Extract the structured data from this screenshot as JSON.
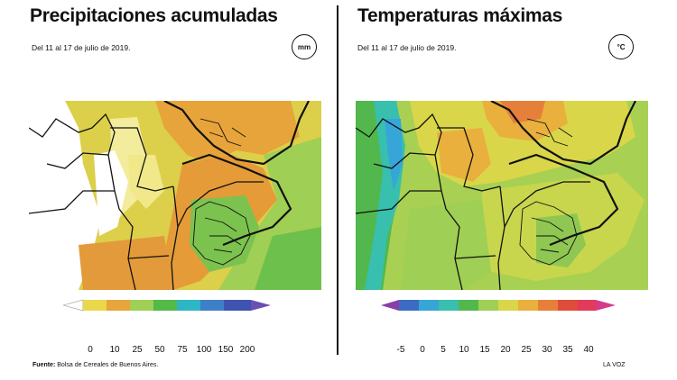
{
  "precip": {
    "title": "Precipitaciones acumuladas",
    "subtitle": "Del 11 al 17 de julio de 2019.",
    "unit": "mm",
    "scale_labels": [
      "0",
      "10",
      "25",
      "50",
      "75",
      "100",
      "150",
      "200"
    ],
    "scale_colors": [
      "#ffffff",
      "#e9d84a",
      "#e7a53c",
      "#9fcf54",
      "#53b947",
      "#2fb6c4",
      "#3e7fc9",
      "#6a50b2"
    ]
  },
  "temp": {
    "title": "Temperaturas máximas",
    "subtitle": "Del 11 al 17 de julio de 2019.",
    "unit": "°C",
    "scale_labels": [
      "-5",
      "0",
      "5",
      "10",
      "15",
      "20",
      "25",
      "30",
      "35",
      "40"
    ],
    "scale_colors": [
      "#8b3fa5",
      "#3b6cc4",
      "#36a5d8",
      "#38bfae",
      "#52b84d",
      "#9fcf54",
      "#dad64a",
      "#e9b03d",
      "#e5803a",
      "#df4d3a",
      "#d83a8a"
    ]
  },
  "footer": {
    "source_label": "Fuente:",
    "source_text": "Bolsa de Cereales de Buenos Aires.",
    "credit": "LA VOZ"
  }
}
